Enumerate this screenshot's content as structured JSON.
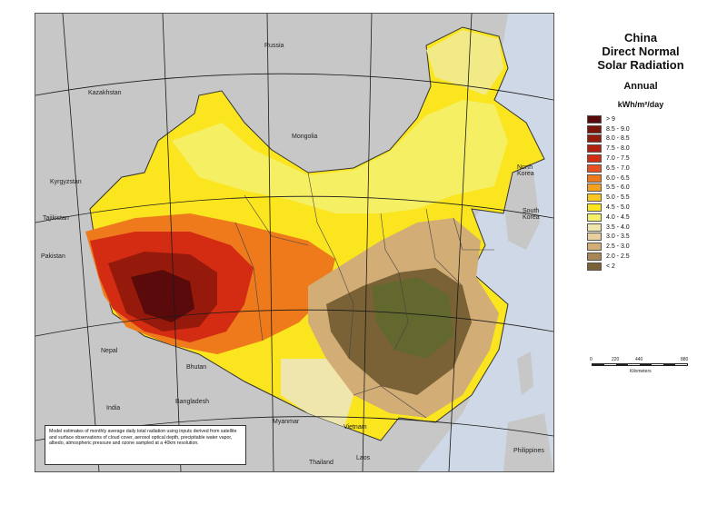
{
  "legend": {
    "title_line1": "China",
    "title_line2": "Direct Normal",
    "title_line3": "Solar Radiation",
    "subtitle": "Annual",
    "unit": "kWh/m²/day",
    "classes": [
      {
        "label": "> 9",
        "color": "#5a0a0a"
      },
      {
        "label": "8.5 - 9.0",
        "color": "#7a1408"
      },
      {
        "label": "8.0 - 8.5",
        "color": "#951a0c"
      },
      {
        "label": "7.5 - 8.0",
        "color": "#b3210e"
      },
      {
        "label": "7.0 - 7.5",
        "color": "#d42c12"
      },
      {
        "label": "6.5 - 7.0",
        "color": "#e85020"
      },
      {
        "label": "6.0 - 6.5",
        "color": "#ee7a1c"
      },
      {
        "label": "5.5 - 6.0",
        "color": "#f3a11e"
      },
      {
        "label": "5.0 - 5.5",
        "color": "#f8c820"
      },
      {
        "label": "4.5 - 5.0",
        "color": "#fbe51e"
      },
      {
        "label": "4.0 - 4.5",
        "color": "#f4f06a"
      },
      {
        "label": "3.5 - 4.0",
        "color": "#efe6ae"
      },
      {
        "label": "3.0 - 3.5",
        "color": "#e7cfa0"
      },
      {
        "label": "2.5 - 3.0",
        "color": "#d2ad76"
      },
      {
        "label": "2.0 - 2.5",
        "color": "#a98754"
      },
      {
        "label": "< 2",
        "color": "#7a6236"
      }
    ]
  },
  "scale": {
    "ticks": [
      "0",
      "220",
      "440",
      "880"
    ],
    "unit": "Kilometers"
  },
  "map": {
    "countries": {
      "russia": "Russia",
      "kazakhstan": "Kazakhstan",
      "mongolia": "Mongolia",
      "kyrgyzstan": "Kyrgyzstan",
      "tajikistan": "Tajikistan",
      "pakistan": "Pakistan",
      "north_korea": "North\nKorea",
      "south_korea": "South\nKorea",
      "nepal": "Nepal",
      "bhutan": "Bhutan",
      "india": "India",
      "bangladesh": "Bangladesh",
      "myanmar": "Myanmar",
      "vietnam": "Vietnam",
      "thailand": "Thailand",
      "laos": "Laos",
      "philippines": "Philippines"
    },
    "note": "Model estimates of monthly average daily total radiation using inputs derived from satellite and surface observations of cloud cover, aerosol optical depth, precipitable water vapor, albedo, atmospheric pressure and ozone sampled at a 40km resolution.",
    "colors": {
      "land_outside": "#c7c7c7",
      "sea": "#cfd8e6",
      "grid": "#1a1a1a",
      "border": "#333333"
    }
  }
}
